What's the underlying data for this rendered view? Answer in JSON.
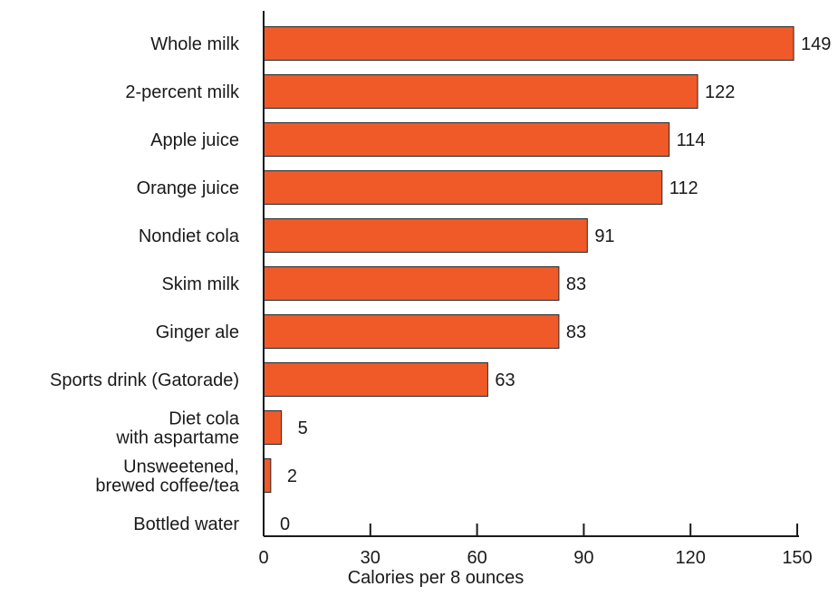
{
  "chart_data": {
    "type": "bar",
    "orientation": "horizontal",
    "categories": [
      "Whole milk",
      "2-percent milk",
      "Apple juice",
      "Orange juice",
      "Nondiet cola",
      "Skim milk",
      "Ginger ale",
      "Sports drink (Gatorade)",
      "Diet cola\nwith aspartame",
      "Unsweetened,\nbrewed coffee/tea",
      "Bottled water"
    ],
    "values": [
      149,
      122,
      114,
      112,
      91,
      83,
      83,
      63,
      5,
      2,
      0
    ],
    "data_labels": [
      "149",
      "122",
      "114",
      "112",
      "91",
      "83",
      "83",
      "63",
      "5",
      "2",
      "0"
    ],
    "title": "",
    "xlabel": "Calories per 8 ounces",
    "ylabel": "",
    "xlim": [
      0,
      150
    ],
    "xticks": [
      0,
      30,
      60,
      90,
      120,
      150
    ],
    "xtick_labels": [
      "0",
      "30",
      "60",
      "90",
      "120",
      "150"
    ],
    "grid": false,
    "legend": "none",
    "colors": {
      "bar_fill": "#f05a28",
      "bar_stroke": "#2a2a2a",
      "axis": "#1a1a1a",
      "text": "#1a1a1a"
    }
  }
}
